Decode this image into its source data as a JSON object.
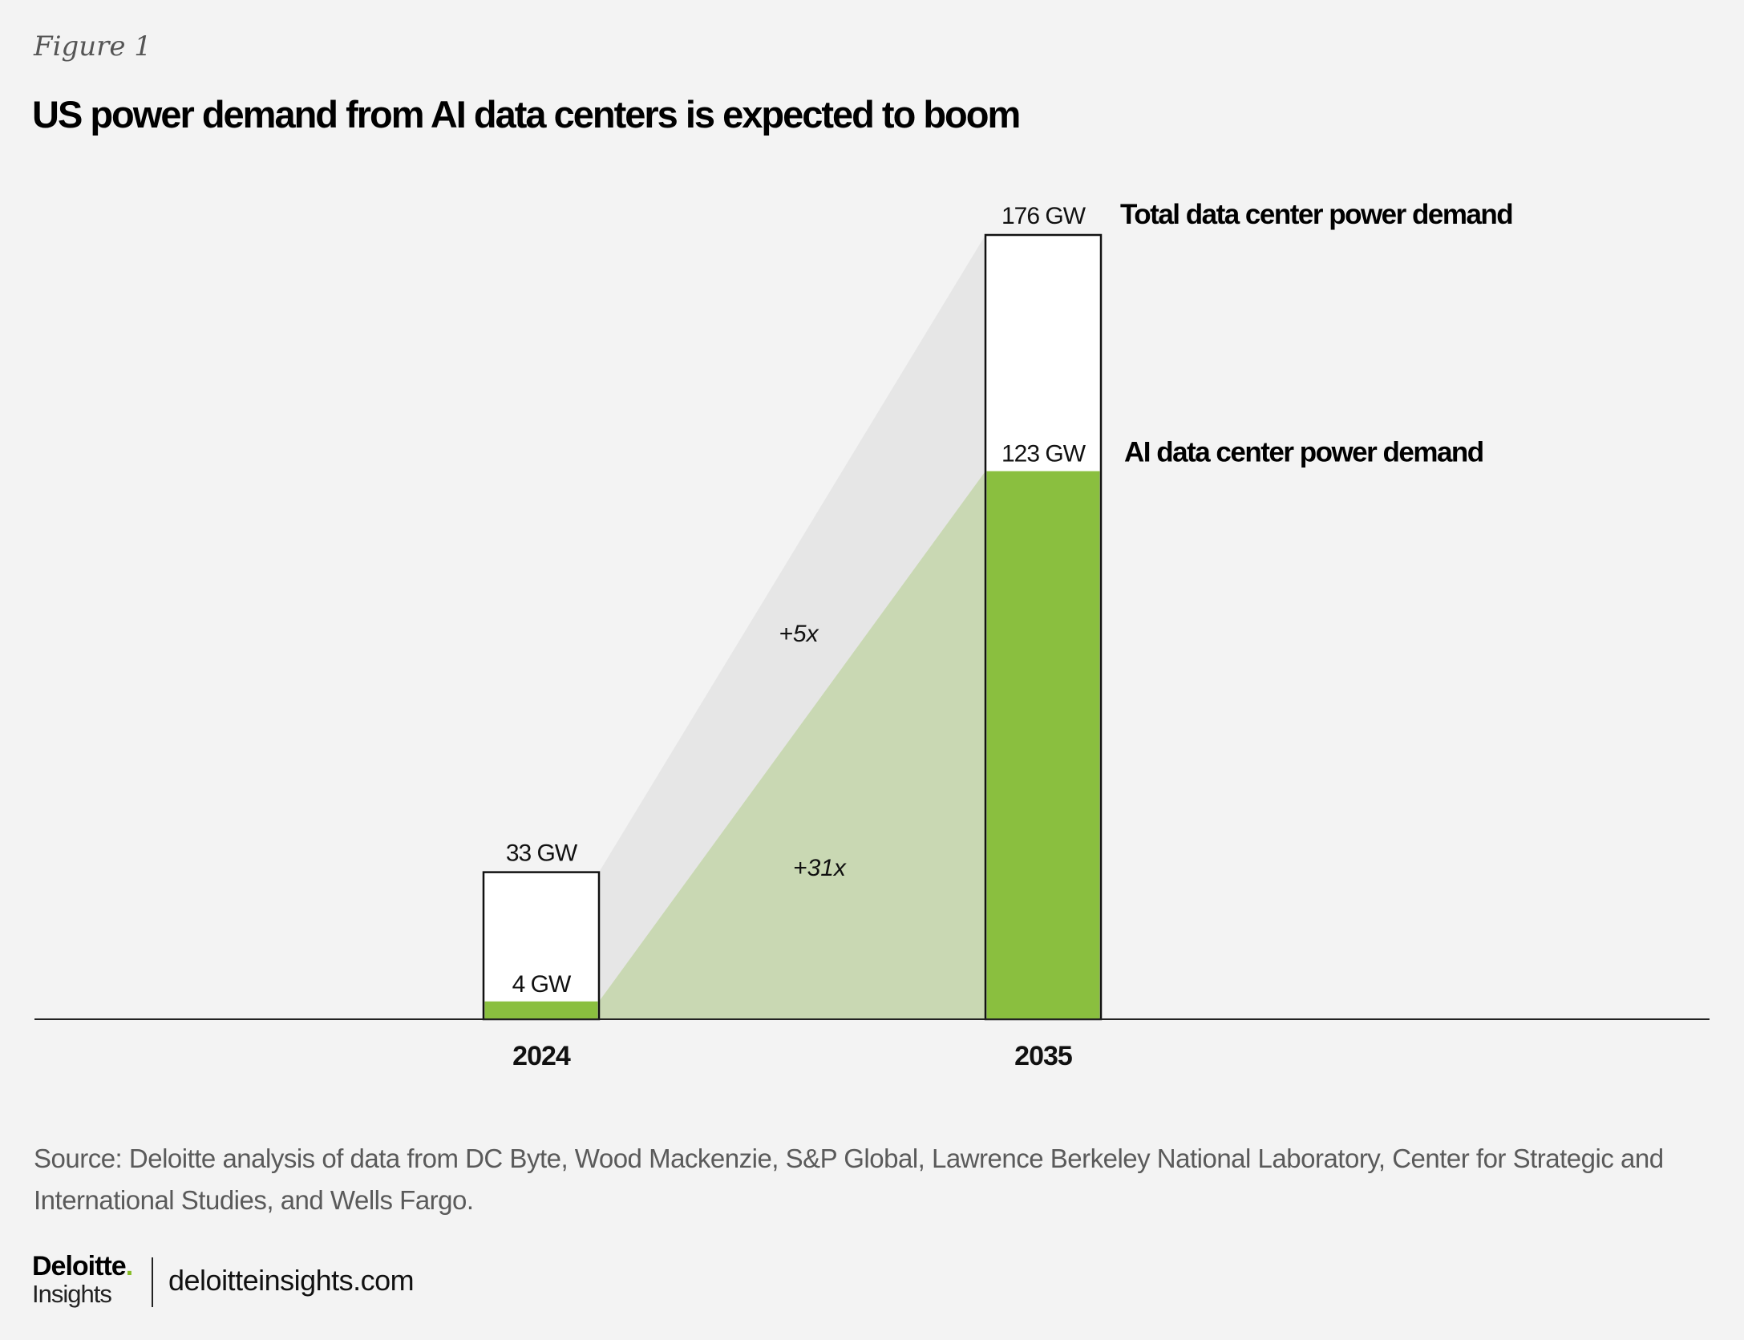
{
  "figure_label": "Figure 1",
  "title": "US power demand from AI data centers is expected to boom",
  "chart_data": {
    "type": "bar",
    "categories": [
      "2024",
      "2035"
    ],
    "unit": "GW",
    "series": [
      {
        "name": "Total data center power demand",
        "values": [
          33,
          176
        ],
        "labels": [
          "33 GW",
          "176 GW"
        ],
        "color": "#ffffff"
      },
      {
        "name": "AI data center power demand",
        "values": [
          4,
          123
        ],
        "labels": [
          "4 GW",
          "123 GW"
        ],
        "color": "#8abf3f"
      }
    ],
    "annotations": [
      "+5x",
      "+31x"
    ],
    "band_colors": {
      "total": "#e6e6e6",
      "ai": "#c9d8b3"
    },
    "ylim": [
      0,
      176
    ],
    "grid": false
  },
  "source": [
    "Source: Deloitte analysis of data from DC Byte, Wood Mackenzie, S&P Global, Lawrence Berkeley National Laboratory, Center for Strategic and",
    "International Studies, and Wells Fargo."
  ],
  "logo": {
    "line1": "Deloitte",
    "dot": ".",
    "line2": "Insights"
  },
  "website": "deloitteinsights.com"
}
